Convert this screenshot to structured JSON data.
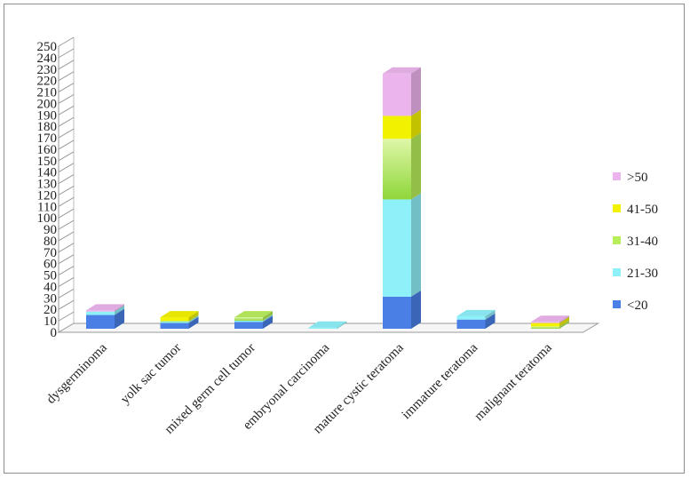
{
  "chart_data": {
    "type": "bar",
    "stacked": true,
    "three_d": true,
    "ylim": [
      0,
      250
    ],
    "ytick_step": 10,
    "grid": false,
    "legend_position": "right",
    "categories": [
      "dysgerminoma",
      "yolk sac tumor",
      "mixed germ cell tumor",
      "embryonal carcinoma",
      "mature cystic teratoma",
      "immature teratoma",
      "malignant teratoma"
    ],
    "series": [
      {
        "name": "<20",
        "color": "#4a7fe6",
        "values": [
          12,
          5,
          6,
          0,
          28,
          8,
          0
        ]
      },
      {
        "name": "21-30",
        "color": "#8ef0f8",
        "values": [
          3,
          1,
          1,
          1,
          85,
          3,
          0
        ]
      },
      {
        "name": "31-40",
        "color": "#b8ee5a",
        "values": [
          0,
          1,
          3,
          0,
          53,
          0,
          2
        ]
      },
      {
        "name": "41-50",
        "color": "#f2f200",
        "values": [
          0,
          3,
          0,
          0,
          20,
          0,
          3
        ]
      },
      {
        "name": ">50",
        "color": "#ecb4ec",
        "values": [
          1,
          0,
          0,
          0,
          37,
          0,
          1
        ]
      }
    ]
  }
}
